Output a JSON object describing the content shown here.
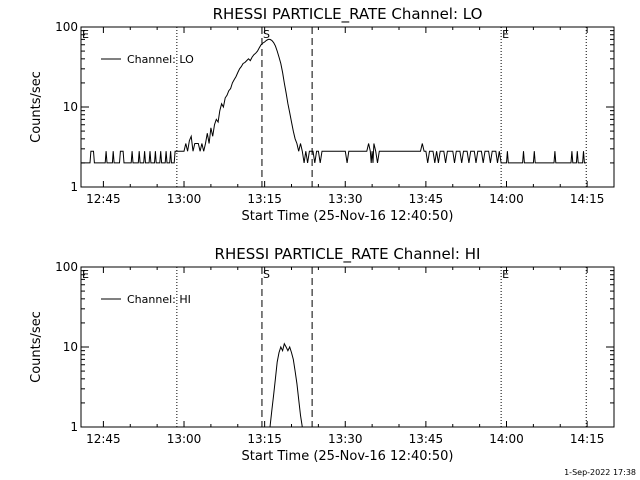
{
  "footer": {
    "timestamp": "1-Sep-2022 17:38"
  },
  "chart_data": [
    {
      "type": "line",
      "title": "RHESSI PARTICLE_RATE Channel: LO",
      "xlabel": "Start Time (25-Nov-16 12:40:50)",
      "ylabel": "Counts/sec",
      "yscale": "log",
      "ylim": [
        1,
        100
      ],
      "xlim": [
        "12:40:50",
        "14:20:00"
      ],
      "x_ticks": [
        "12:45",
        "13:00",
        "13:15",
        "13:30",
        "13:45",
        "14:00",
        "14:15"
      ],
      "y_ticks": [
        "1",
        "10",
        "100"
      ],
      "legend": {
        "label": "Channel: LO",
        "position": "top-left"
      },
      "markers": [
        {
          "label": "E",
          "time": "12:40:50",
          "style": "dotted"
        },
        {
          "label": "",
          "time": "12:58:40",
          "style": "dotted"
        },
        {
          "label": "S",
          "time": "13:14:30",
          "style": "dashed"
        },
        {
          "label": "",
          "time": "13:23:50",
          "style": "dashed"
        },
        {
          "label": "E",
          "time": "13:59:00",
          "style": "dotted"
        },
        {
          "label": "",
          "time": "14:14:50",
          "style": "dotted"
        }
      ],
      "series": [
        {
          "name": "Channel: LO",
          "points": [
            [
              "12:40:50",
              2
            ],
            [
              "12:42:30",
              2
            ],
            [
              "12:42:40",
              2.8
            ],
            [
              "12:43:10",
              2.8
            ],
            [
              "12:43:20",
              2
            ],
            [
              "12:45:20",
              2
            ],
            [
              "12:45:30",
              2.8
            ],
            [
              "12:45:40",
              2
            ],
            [
              "12:46:40",
              2
            ],
            [
              "12:46:50",
              2.8
            ],
            [
              "12:47:00",
              2
            ],
            [
              "12:48:00",
              2
            ],
            [
              "12:48:10",
              2.8
            ],
            [
              "12:48:40",
              2.8
            ],
            [
              "12:48:50",
              2
            ],
            [
              "12:50:10",
              2
            ],
            [
              "12:50:20",
              2.8
            ],
            [
              "12:50:30",
              2
            ],
            [
              "12:51:30",
              2
            ],
            [
              "12:51:40",
              2.8
            ],
            [
              "12:51:50",
              2
            ],
            [
              "12:52:30",
              2
            ],
            [
              "12:52:40",
              2.8
            ],
            [
              "12:52:50",
              2
            ],
            [
              "12:53:30",
              2
            ],
            [
              "12:53:40",
              2.8
            ],
            [
              "12:53:50",
              2
            ],
            [
              "12:54:30",
              2
            ],
            [
              "12:54:40",
              2.8
            ],
            [
              "12:54:50",
              2
            ],
            [
              "12:55:30",
              2
            ],
            [
              "12:55:40",
              2.8
            ],
            [
              "12:55:50",
              2
            ],
            [
              "12:56:30",
              2
            ],
            [
              "12:56:40",
              2.8
            ],
            [
              "12:56:50",
              2
            ],
            [
              "12:57:20",
              2
            ],
            [
              "12:57:30",
              2.8
            ],
            [
              "12:57:40",
              2
            ],
            [
              "12:58:10",
              2
            ],
            [
              "12:58:20",
              2.8
            ],
            [
              "12:58:40",
              2.8
            ],
            [
              "12:59:00",
              2.8
            ],
            [
              "13:00:00",
              2.8
            ],
            [
              "13:00:20",
              3.5
            ],
            [
              "13:00:40",
              2.8
            ],
            [
              "13:01:00",
              3.8
            ],
            [
              "13:01:20",
              4.3
            ],
            [
              "13:01:40",
              2.8
            ],
            [
              "13:02:00",
              3.5
            ],
            [
              "13:02:40",
              3.5
            ],
            [
              "13:03:00",
              2.8
            ],
            [
              "13:03:20",
              3.5
            ],
            [
              "13:03:40",
              2.8
            ],
            [
              "13:04:00",
              3.5
            ],
            [
              "13:04:20",
              4.7
            ],
            [
              "13:04:40",
              3.5
            ],
            [
              "13:05:00",
              5.5
            ],
            [
              "13:05:20",
              4.3
            ],
            [
              "13:05:40",
              6
            ],
            [
              "13:06:00",
              7
            ],
            [
              "13:06:20",
              6.5
            ],
            [
              "13:06:40",
              9
            ],
            [
              "13:07:00",
              11
            ],
            [
              "13:07:20",
              10
            ],
            [
              "13:07:40",
              13
            ],
            [
              "13:08:00",
              14
            ],
            [
              "13:08:20",
              16
            ],
            [
              "13:08:40",
              17
            ],
            [
              "13:09:00",
              20
            ],
            [
              "13:09:20",
              22
            ],
            [
              "13:09:40",
              24
            ],
            [
              "13:10:00",
              27
            ],
            [
              "13:10:20",
              30
            ],
            [
              "13:10:40",
              32
            ],
            [
              "13:11:00",
              35
            ],
            [
              "13:11:20",
              36
            ],
            [
              "13:11:40",
              38
            ],
            [
              "13:12:00",
              40
            ],
            [
              "13:12:20",
              38
            ],
            [
              "13:12:40",
              42
            ],
            [
              "13:13:00",
              45
            ],
            [
              "13:13:20",
              47
            ],
            [
              "13:13:40",
              50
            ],
            [
              "13:14:00",
              55
            ],
            [
              "13:14:20",
              60
            ],
            [
              "13:14:40",
              63
            ],
            [
              "13:15:00",
              65
            ],
            [
              "13:15:20",
              68
            ],
            [
              "13:15:40",
              70
            ],
            [
              "13:16:00",
              70
            ],
            [
              "13:16:20",
              68
            ],
            [
              "13:16:40",
              64
            ],
            [
              "13:17:00",
              58
            ],
            [
              "13:17:20",
              50
            ],
            [
              "13:17:40",
              42
            ],
            [
              "13:18:00",
              35
            ],
            [
              "13:18:20",
              27
            ],
            [
              "13:18:40",
              20
            ],
            [
              "13:19:00",
              15
            ],
            [
              "13:19:20",
              11
            ],
            [
              "13:19:40",
              8.5
            ],
            [
              "13:20:00",
              6.5
            ],
            [
              "13:20:20",
              5
            ],
            [
              "13:20:40",
              4
            ],
            [
              "13:21:00",
              3.5
            ],
            [
              "13:21:20",
              2.8
            ],
            [
              "13:21:40",
              3.5
            ],
            [
              "13:22:00",
              2.8
            ],
            [
              "13:22:20",
              2
            ],
            [
              "13:22:40",
              2.8
            ],
            [
              "13:23:00",
              2
            ],
            [
              "13:23:20",
              2.8
            ],
            [
              "13:24:00",
              2.8
            ],
            [
              "13:24:20",
              2
            ],
            [
              "13:24:40",
              2.8
            ],
            [
              "13:25:00",
              2.8
            ],
            [
              "13:25:20",
              2
            ],
            [
              "13:25:40",
              2.8
            ],
            [
              "13:30:00",
              2.8
            ],
            [
              "13:30:20",
              2
            ],
            [
              "13:30:40",
              2.8
            ],
            [
              "13:34:00",
              2.8
            ],
            [
              "13:34:20",
              3.5
            ],
            [
              "13:34:40",
              2.8
            ],
            [
              "13:34:50",
              2
            ],
            [
              "13:35:00",
              2.8
            ],
            [
              "13:35:10",
              2
            ],
            [
              "13:35:20",
              3.5
            ],
            [
              "13:35:40",
              2.8
            ],
            [
              "13:36:00",
              2
            ],
            [
              "13:36:20",
              2.8
            ],
            [
              "13:44:00",
              2.8
            ],
            [
              "13:44:20",
              3.5
            ],
            [
              "13:44:40",
              2.8
            ],
            [
              "13:45:00",
              2.8
            ],
            [
              "13:45:20",
              2
            ],
            [
              "13:45:40",
              2.8
            ],
            [
              "13:46:20",
              2.8
            ],
            [
              "13:46:40",
              2
            ],
            [
              "13:47:00",
              2.8
            ],
            [
              "13:47:20",
              2
            ],
            [
              "13:47:40",
              2.8
            ],
            [
              "13:48:20",
              2.8
            ],
            [
              "13:48:40",
              2
            ],
            [
              "13:49:00",
              2.8
            ],
            [
              "13:50:00",
              2.8
            ],
            [
              "13:50:20",
              2
            ],
            [
              "13:50:40",
              2.8
            ],
            [
              "13:51:20",
              2.8
            ],
            [
              "13:51:40",
              2
            ],
            [
              "13:52:00",
              2.8
            ],
            [
              "13:52:40",
              2.8
            ],
            [
              "13:53:00",
              2
            ],
            [
              "13:53:20",
              2.8
            ],
            [
              "13:54:00",
              2.8
            ],
            [
              "13:54:20",
              2
            ],
            [
              "13:54:40",
              2.8
            ],
            [
              "13:55:20",
              2.8
            ],
            [
              "13:55:40",
              2
            ],
            [
              "13:56:00",
              2.8
            ],
            [
              "13:56:40",
              2.8
            ],
            [
              "13:57:00",
              2
            ],
            [
              "13:57:20",
              2.8
            ],
            [
              "13:58:00",
              2.8
            ],
            [
              "13:58:20",
              2
            ],
            [
              "13:58:40",
              2.8
            ],
            [
              "13:59:00",
              2
            ],
            [
              "14:00:00",
              2
            ],
            [
              "14:00:10",
              2.8
            ],
            [
              "14:00:20",
              2
            ],
            [
              "14:03:00",
              2
            ],
            [
              "14:03:10",
              2.8
            ],
            [
              "14:03:20",
              2
            ],
            [
              "14:05:00",
              2
            ],
            [
              "14:05:10",
              2.8
            ],
            [
              "14:05:20",
              2
            ],
            [
              "14:08:50",
              2
            ],
            [
              "14:09:00",
              2.8
            ],
            [
              "14:09:10",
              2
            ],
            [
              "14:12:00",
              2
            ],
            [
              "14:12:10",
              2.8
            ],
            [
              "14:12:20",
              2
            ],
            [
              "14:13:00",
              2
            ],
            [
              "14:13:10",
              2.8
            ],
            [
              "14:13:20",
              2
            ],
            [
              "14:14:10",
              2
            ],
            [
              "14:14:20",
              2.8
            ],
            [
              "14:14:30",
              2
            ],
            [
              "14:14:50",
              2
            ]
          ]
        }
      ]
    },
    {
      "type": "line",
      "title": "RHESSI PARTICLE_RATE Channel: HI",
      "xlabel": "Start Time (25-Nov-16 12:40:50)",
      "ylabel": "Counts/sec",
      "yscale": "log",
      "ylim": [
        1,
        100
      ],
      "xlim": [
        "12:40:50",
        "14:20:00"
      ],
      "x_ticks": [
        "12:45",
        "13:00",
        "13:15",
        "13:30",
        "13:45",
        "14:00",
        "14:15"
      ],
      "y_ticks": [
        "1",
        "10",
        "100"
      ],
      "legend": {
        "label": "Channel: HI",
        "position": "top-left"
      },
      "markers": [
        {
          "label": "E",
          "time": "12:40:50",
          "style": "dotted"
        },
        {
          "label": "",
          "time": "12:58:40",
          "style": "dotted"
        },
        {
          "label": "S",
          "time": "13:14:30",
          "style": "dashed"
        },
        {
          "label": "",
          "time": "13:23:50",
          "style": "dashed"
        },
        {
          "label": "E",
          "time": "13:59:00",
          "style": "dotted"
        },
        {
          "label": "",
          "time": "14:14:50",
          "style": "dotted"
        }
      ],
      "series": [
        {
          "name": "Channel: HI",
          "points": [
            [
              "13:16:00",
              1
            ],
            [
              "13:16:20",
              1.6
            ],
            [
              "13:16:40",
              2.5
            ],
            [
              "13:17:00",
              4
            ],
            [
              "13:17:20",
              6.5
            ],
            [
              "13:17:40",
              8.5
            ],
            [
              "13:18:00",
              10
            ],
            [
              "13:18:20",
              9
            ],
            [
              "13:18:40",
              11
            ],
            [
              "13:19:00",
              10
            ],
            [
              "13:19:20",
              9
            ],
            [
              "13:19:40",
              10
            ],
            [
              "13:20:00",
              8.5
            ],
            [
              "13:20:20",
              7
            ],
            [
              "13:20:40",
              5
            ],
            [
              "13:21:00",
              3.5
            ],
            [
              "13:21:20",
              2.2
            ],
            [
              "13:21:40",
              1.4
            ],
            [
              "13:22:00",
              1
            ]
          ]
        }
      ]
    }
  ]
}
